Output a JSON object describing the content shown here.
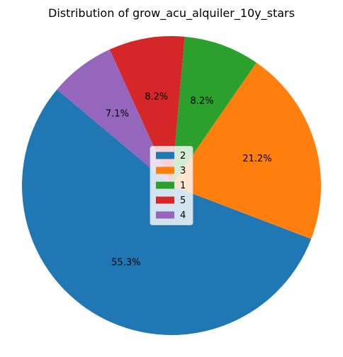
{
  "chart_data": {
    "type": "pie",
    "title": "Distribution of grow_acu_alquiler_10y_stars",
    "categories": [
      "2",
      "3",
      "1",
      "5",
      "4"
    ],
    "values": [
      55.3,
      21.2,
      8.2,
      8.2,
      7.1
    ],
    "labels": [
      "55.3%",
      "21.2%",
      "8.2%",
      "8.2%",
      "7.1%"
    ],
    "colors": [
      "#1f77b4",
      "#ff7f0e",
      "#2ca02c",
      "#d62728",
      "#9467bd"
    ],
    "start_angle_deg": 140,
    "direction": "counterclockwise",
    "legend": {
      "placement": "center",
      "entries": [
        "2",
        "3",
        "1",
        "5",
        "4"
      ]
    }
  }
}
